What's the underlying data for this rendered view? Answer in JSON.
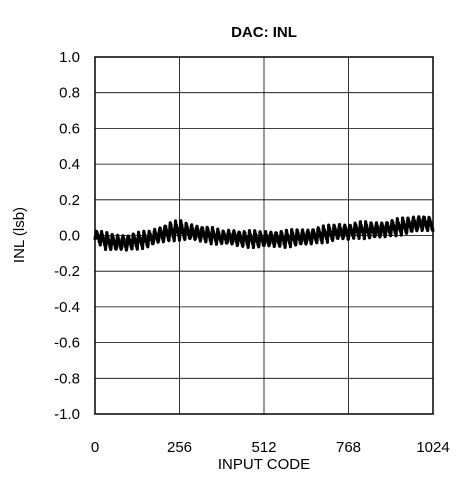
{
  "chart_data": {
    "type": "line",
    "title": "DAC: INL",
    "xlabel": "INPUT CODE",
    "ylabel": "INL (lsb)",
    "xlim": [
      0,
      1024
    ],
    "ylim": [
      -1.0,
      1.0
    ],
    "x_ticks": [
      0,
      256,
      512,
      768,
      1024
    ],
    "x_tick_labels": [
      "0",
      "256",
      "512",
      "768",
      "1024"
    ],
    "y_ticks": [
      1.0,
      0.8,
      0.6,
      0.4,
      0.2,
      0.0,
      -0.2,
      -0.4,
      -0.6,
      -0.8,
      -1.0
    ],
    "y_tick_labels": [
      "1.0",
      "0.8",
      "0.6",
      "0.4",
      "0.2",
      "0.0",
      "-0.2",
      "-0.4",
      "-0.6",
      "-0.8",
      "-1.0"
    ],
    "grid": true,
    "legend": "none",
    "line_color": "#000000",
    "series": [
      {
        "x": [
          0,
          32,
          64,
          96,
          128,
          160,
          192,
          224,
          256,
          288,
          320,
          352,
          384,
          416,
          448,
          480,
          512,
          544,
          576,
          608,
          640,
          672,
          704,
          736,
          768,
          800,
          832,
          864,
          896,
          928,
          960,
          992,
          1024
        ],
        "y": [
          0.0,
          -0.03,
          -0.04,
          -0.04,
          -0.03,
          -0.02,
          0.0,
          0.02,
          0.03,
          0.02,
          0.01,
          0.0,
          -0.01,
          -0.01,
          -0.02,
          -0.02,
          -0.02,
          -0.02,
          -0.02,
          -0.01,
          -0.01,
          0.0,
          0.01,
          0.02,
          0.02,
          0.03,
          0.03,
          0.03,
          0.04,
          0.05,
          0.06,
          0.07,
          0.06
        ],
        "ripple": [
          0.03,
          0.05,
          0.05,
          0.05,
          0.05,
          0.05,
          0.05,
          0.06,
          0.06,
          0.05,
          0.05,
          0.05,
          0.04,
          0.05,
          0.05,
          0.05,
          0.05,
          0.05,
          0.05,
          0.05,
          0.05,
          0.05,
          0.05,
          0.05,
          0.05,
          0.05,
          0.05,
          0.05,
          0.05,
          0.05,
          0.05,
          0.05,
          0.04
        ]
      }
    ]
  }
}
